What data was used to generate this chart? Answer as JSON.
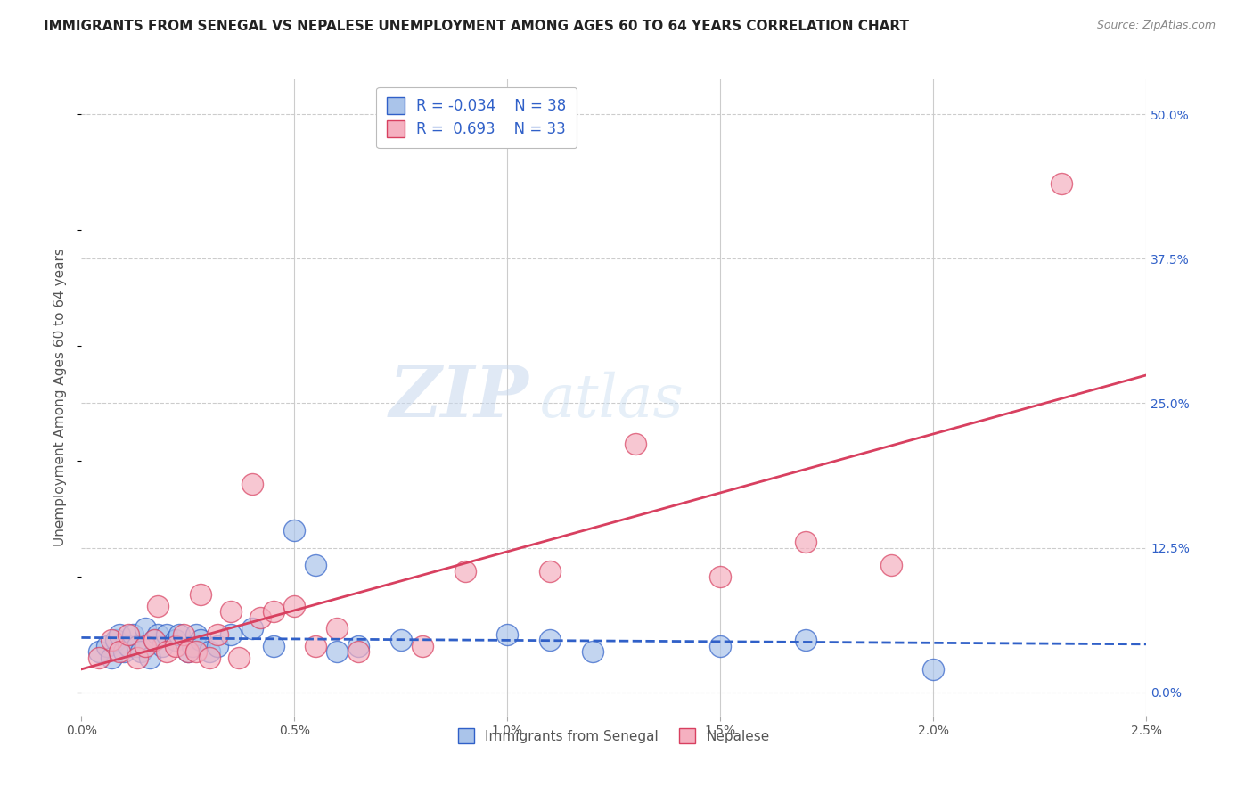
{
  "title": "IMMIGRANTS FROM SENEGAL VS NEPALESE UNEMPLOYMENT AMONG AGES 60 TO 64 YEARS CORRELATION CHART",
  "source": "Source: ZipAtlas.com",
  "ylabel": "Unemployment Among Ages 60 to 64 years",
  "x_tick_labels": [
    "0.0%",
    "0.5%",
    "1.0%",
    "1.5%",
    "2.0%",
    "2.5%"
  ],
  "x_tick_values": [
    0.0,
    0.5,
    1.0,
    1.5,
    2.0,
    2.5
  ],
  "y_tick_labels_right": [
    "0.0%",
    "12.5%",
    "25.0%",
    "37.5%",
    "50.0%"
  ],
  "y_tick_values_right": [
    0.0,
    12.5,
    25.0,
    37.5,
    50.0
  ],
  "xlim": [
    0.0,
    2.5
  ],
  "ylim": [
    -2,
    53
  ],
  "blue_R": "-0.034",
  "blue_N": "38",
  "pink_R": "0.693",
  "pink_N": "33",
  "blue_color": "#aac4ea",
  "pink_color": "#f5b0c0",
  "blue_line_color": "#3060c8",
  "pink_line_color": "#d84060",
  "legend_blue_label": "Immigrants from Senegal",
  "legend_pink_label": "Nepalese",
  "watermark_zip": "ZIP",
  "watermark_atlas": "atlas",
  "blue_scatter_x": [
    0.04,
    0.06,
    0.07,
    0.08,
    0.09,
    0.1,
    0.11,
    0.12,
    0.13,
    0.14,
    0.15,
    0.16,
    0.17,
    0.18,
    0.19,
    0.2,
    0.22,
    0.23,
    0.25,
    0.26,
    0.27,
    0.28,
    0.3,
    0.32,
    0.35,
    0.4,
    0.45,
    0.5,
    0.55,
    0.6,
    0.65,
    0.75,
    1.0,
    1.1,
    1.2,
    1.5,
    1.7,
    2.0
  ],
  "blue_scatter_y": [
    3.5,
    4.0,
    3.0,
    4.5,
    5.0,
    3.5,
    4.0,
    5.0,
    4.0,
    3.5,
    5.5,
    3.0,
    4.5,
    5.0,
    4.0,
    5.0,
    4.5,
    5.0,
    3.5,
    4.0,
    5.0,
    4.5,
    3.5,
    4.0,
    5.0,
    5.5,
    4.0,
    14.0,
    11.0,
    3.5,
    4.0,
    4.5,
    5.0,
    4.5,
    3.5,
    4.0,
    4.5,
    2.0
  ],
  "pink_scatter_x": [
    0.04,
    0.07,
    0.09,
    0.11,
    0.13,
    0.15,
    0.17,
    0.18,
    0.2,
    0.22,
    0.24,
    0.25,
    0.27,
    0.28,
    0.3,
    0.32,
    0.35,
    0.37,
    0.4,
    0.42,
    0.45,
    0.5,
    0.55,
    0.6,
    0.65,
    0.8,
    0.9,
    1.1,
    1.3,
    1.5,
    1.7,
    1.9,
    2.3
  ],
  "pink_scatter_y": [
    3.0,
    4.5,
    3.5,
    5.0,
    3.0,
    4.0,
    4.5,
    7.5,
    3.5,
    4.0,
    5.0,
    3.5,
    3.5,
    8.5,
    3.0,
    5.0,
    7.0,
    3.0,
    18.0,
    6.5,
    7.0,
    7.5,
    4.0,
    5.5,
    3.5,
    4.0,
    10.5,
    10.5,
    21.5,
    10.0,
    13.0,
    11.0,
    44.0
  ],
  "title_fontsize": 11,
  "axis_label_fontsize": 11,
  "tick_fontsize": 10,
  "source_fontsize": 9
}
